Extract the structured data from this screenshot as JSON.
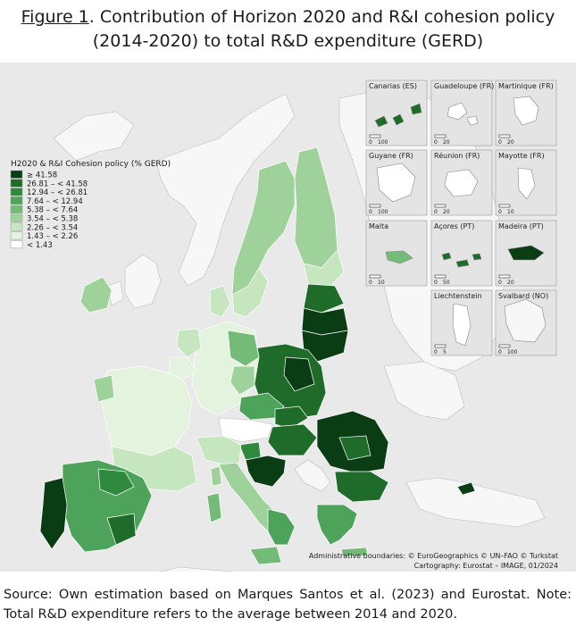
{
  "title": {
    "figure_label": "Figure 1",
    "line1_rest": ". Contribution of Horizon 2020 and R&I cohesion policy",
    "line2": "(2014-2020) to total R&D expenditure (GERD)"
  },
  "legend": {
    "title": "H2020 & R&I Cohesion policy (% GERD)",
    "classes": [
      {
        "label": "≥ 41.58",
        "color": "#0b3d14"
      },
      {
        "label": "26.81 – < 41.58",
        "color": "#1e6b2a"
      },
      {
        "label": "12.94 – < 26.81",
        "color": "#2f8a3e"
      },
      {
        "label": "7.64 – < 12.94",
        "color": "#4ea35a"
      },
      {
        "label": "5.38 – < 7.64",
        "color": "#74bb78"
      },
      {
        "label": "3.54 – < 5.38",
        "color": "#9fd29b"
      },
      {
        "label": "2.26 – < 3.54",
        "color": "#c6e6bf"
      },
      {
        "label": "1.43 – < 2.26",
        "color": "#e3f3dd"
      },
      {
        "label": "< 1.43",
        "color": "#ffffff"
      }
    ]
  },
  "insets": [
    {
      "name": "Canarias (ES)",
      "scale": [
        "0",
        "100"
      ]
    },
    {
      "name": "Guadeloupe (FR)",
      "scale": [
        "0",
        "20"
      ]
    },
    {
      "name": "Martinique (FR)",
      "scale": [
        "0",
        "20"
      ]
    },
    {
      "name": "Guyane (FR)",
      "scale": [
        "0",
        "100"
      ]
    },
    {
      "name": "Réunion (FR)",
      "scale": [
        "0",
        "20"
      ]
    },
    {
      "name": "Mayotte (FR)",
      "scale": [
        "0",
        "10"
      ]
    },
    {
      "name": "Malta",
      "scale": [
        "0",
        "10"
      ]
    },
    {
      "name": "Açores (PT)",
      "scale": [
        "0",
        "50"
      ]
    },
    {
      "name": "Madeira (PT)",
      "scale": [
        "0",
        "20"
      ]
    },
    {
      "name": "Liechtenstein",
      "scale": [
        "0",
        "5"
      ]
    },
    {
      "name": "Svalbard (NO)",
      "scale": [
        "0",
        "100"
      ]
    }
  ],
  "credits": {
    "line1": "Administrative boundaries: © EuroGeographics © UN–FAO © Turkstat",
    "line2": "Cartography: Eurostat – IMAGE, 01/2024"
  },
  "source": "Source: Own estimation based on Marques Santos et al. (2023) and Eurostat. Note: Total R&D expenditure refers to the average between 2014 and 2020."
}
